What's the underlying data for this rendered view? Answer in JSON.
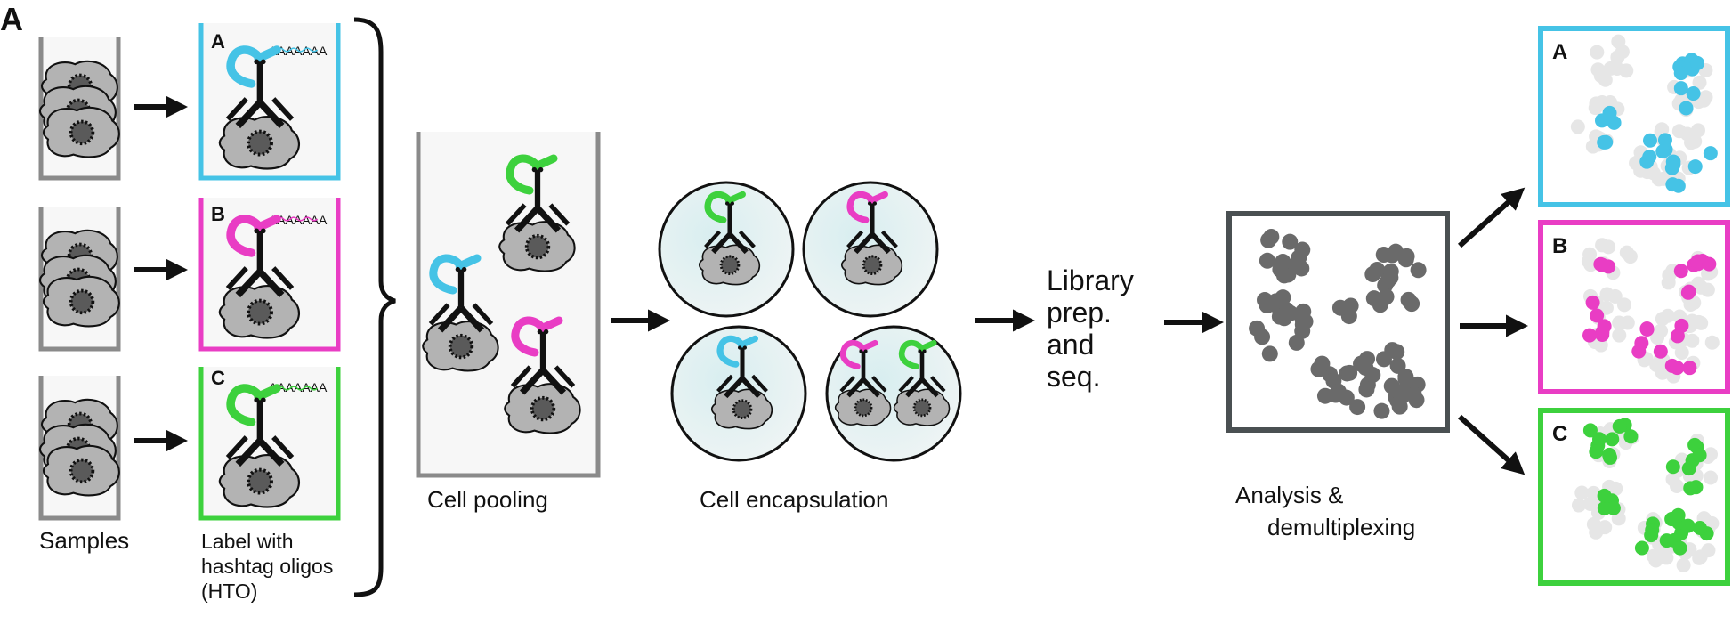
{
  "panel_letter": "A",
  "colors": {
    "a": "#45c3e6",
    "b": "#e93dc4",
    "c": "#3dd13d",
    "cell": "#b3b3b3",
    "nucleus": "#5a5a5a",
    "cluster": "#6a6a6a",
    "faded": "#e6e6e6",
    "tube": "#8a8a8a",
    "black": "#111111"
  },
  "hto_tubes": [
    {
      "letter": "A",
      "tail": "AAAAAAA",
      "color": "#45c3e6"
    },
    {
      "letter": "B",
      "tail": "AAAAAAA",
      "color": "#e93dc4"
    },
    {
      "letter": "C",
      "tail": "AAAAAAA",
      "color": "#3dd13d"
    }
  ],
  "result_panels": [
    {
      "letter": "A",
      "color": "#45c3e6"
    },
    {
      "letter": "B",
      "color": "#e93dc4"
    },
    {
      "letter": "C",
      "color": "#3dd13d"
    }
  ],
  "labels": {
    "samples": "Samples",
    "label_hto": [
      "Label with",
      "hashtag oligos",
      "(HTO)"
    ],
    "pooling": "Cell pooling",
    "encapsulation": "Cell encapsulation",
    "library": [
      "Library",
      "prep.",
      "and",
      "seq."
    ],
    "analysis": [
      "Analysis &",
      "demultiplexing"
    ]
  }
}
